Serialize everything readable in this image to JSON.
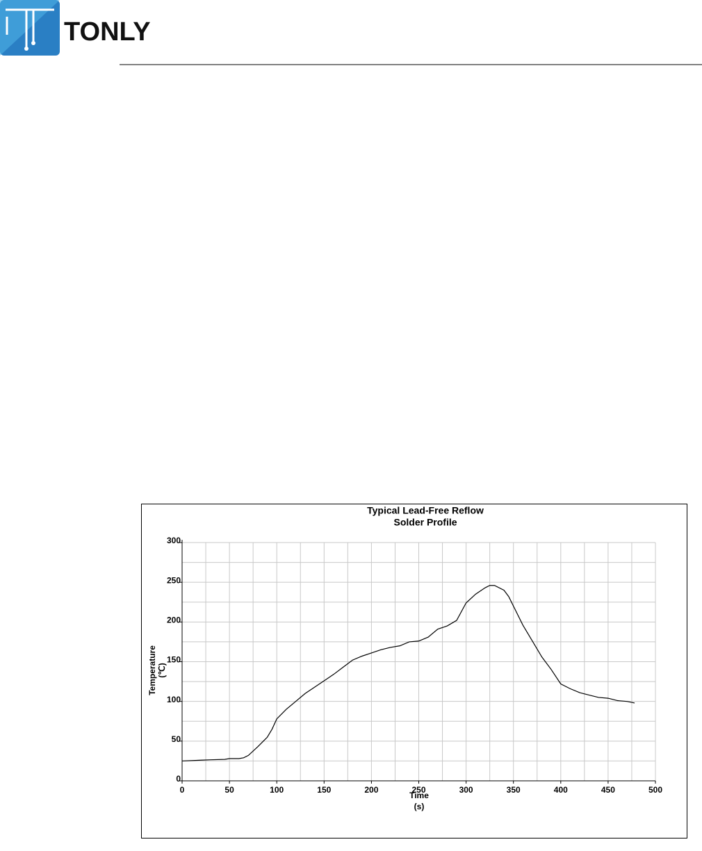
{
  "header": {
    "logo_text": "TONLY"
  },
  "chart_data": {
    "type": "line",
    "title": [
      "Typical Lead-Free Reflow",
      "Solder Profile"
    ],
    "x_label": [
      "Time",
      "(s)"
    ],
    "y_label": [
      "Temperature",
      "(℃)"
    ],
    "x": [
      0,
      20,
      30,
      45,
      50,
      60,
      65,
      70,
      80,
      90,
      95,
      100,
      110,
      120,
      130,
      140,
      150,
      160,
      170,
      180,
      190,
      200,
      210,
      220,
      230,
      240,
      250,
      260,
      270,
      280,
      290,
      300,
      310,
      320,
      325,
      330,
      340,
      345,
      360,
      375,
      380,
      390,
      400,
      410,
      420,
      430,
      440,
      450,
      460,
      470,
      478
    ],
    "series": [
      {
        "color": "#000000",
        "values": [
          25,
          26,
          26.5,
          27,
          28,
          28,
          29,
          32,
          43,
          55,
          65,
          78,
          90,
          100,
          110,
          118,
          126,
          134,
          143,
          152,
          157,
          161,
          165,
          168,
          170,
          175,
          176,
          181,
          191,
          195,
          202,
          224,
          235,
          243,
          246,
          246,
          240,
          232,
          196,
          166,
          156,
          140,
          122,
          116,
          111,
          108,
          105,
          104,
          101,
          100,
          98
        ]
      }
    ],
    "xlim": [
      0,
      500
    ],
    "ylim": [
      0,
      300
    ],
    "xticks": [
      0,
      50,
      100,
      150,
      200,
      250,
      300,
      350,
      400,
      450,
      500
    ],
    "yticks": [
      0,
      50,
      100,
      150,
      200,
      250,
      300
    ],
    "xgrid": [
      25,
      50,
      75,
      100,
      125,
      150,
      175,
      200,
      225,
      250,
      275,
      300,
      325,
      350,
      375,
      400,
      425,
      450,
      475,
      500
    ],
    "ygrid": [
      25,
      50,
      75,
      100,
      125,
      150,
      175,
      200,
      225,
      250,
      275,
      300
    ],
    "grid": true
  }
}
